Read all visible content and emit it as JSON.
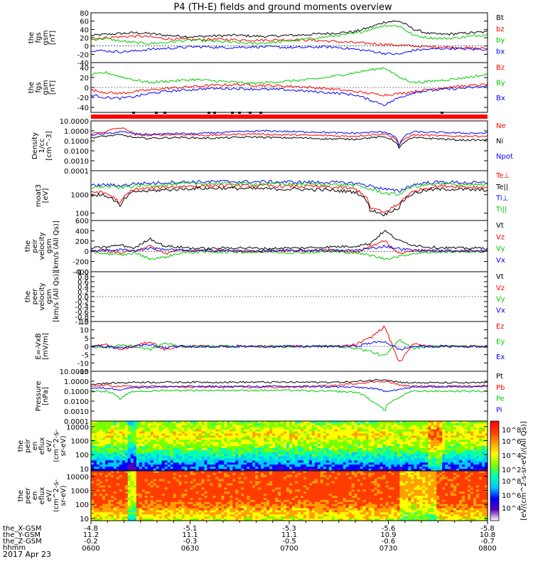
{
  "title": "P4 (TH-E) fields and ground moments overview",
  "date": "2017 Apr 23",
  "chart_data": [
    {
      "type": "line",
      "ylabel_lines": [
        "the",
        "fgs",
        "gsm",
        "[nT]"
      ],
      "yticks": [
        "80",
        "60",
        "40",
        "20",
        "0",
        "-20",
        "-40"
      ],
      "ylim": [
        -40,
        80
      ],
      "series": [
        {
          "name": "Bt",
          "color": "#000000",
          "values": [
            25,
            28,
            30,
            32,
            30,
            26,
            24,
            22,
            24,
            25,
            26,
            24,
            23,
            25,
            26,
            28,
            30,
            32,
            35,
            45,
            58,
            60,
            40,
            30,
            28,
            30,
            32,
            34
          ]
        },
        {
          "name": "bz",
          "color": "#ff0000",
          "values": [
            18,
            20,
            22,
            24,
            22,
            18,
            16,
            15,
            16,
            16,
            15,
            14,
            14,
            15,
            15,
            14,
            12,
            10,
            8,
            6,
            4,
            2,
            0,
            -2,
            -2,
            -4,
            -5,
            -6
          ]
        },
        {
          "name": "by",
          "color": "#00cc00",
          "values": [
            15,
            18,
            12,
            8,
            6,
            8,
            12,
            14,
            12,
            10,
            8,
            6,
            8,
            10,
            14,
            18,
            22,
            26,
            30,
            40,
            50,
            48,
            25,
            20,
            18,
            20,
            24,
            28
          ]
        },
        {
          "name": "bx",
          "color": "#0000ff",
          "values": [
            -10,
            -12,
            -14,
            -12,
            -8,
            -6,
            -4,
            -2,
            -2,
            -4,
            -3,
            -2,
            -2,
            -3,
            -4,
            -3,
            -2,
            -4,
            -8,
            -12,
            -18,
            -20,
            -10,
            -8,
            -6,
            -6,
            -8,
            -8
          ]
        }
      ]
    },
    {
      "type": "line",
      "ylabel_lines": [
        "the",
        "fgs",
        "gsm",
        "[nT]"
      ],
      "yticks": [
        "40",
        "20",
        "0",
        "-20",
        "-40"
      ],
      "ylim": [
        -50,
        50
      ],
      "series": [
        {
          "name": "Bz",
          "color": "#ff0000",
          "values": [
            -5,
            -10,
            -12,
            -8,
            -5,
            -2,
            0,
            2,
            4,
            5,
            6,
            5,
            4,
            3,
            2,
            0,
            -2,
            -5,
            -8,
            -12,
            -15,
            -12,
            -8,
            -4,
            0,
            2,
            4,
            6
          ]
        },
        {
          "name": "By",
          "color": "#00cc00",
          "values": [
            25,
            30,
            22,
            15,
            10,
            12,
            14,
            16,
            14,
            12,
            10,
            8,
            10,
            12,
            14,
            16,
            20,
            25,
            30,
            35,
            40,
            20,
            10,
            12,
            15,
            18,
            22,
            26
          ]
        },
        {
          "name": "Bx",
          "color": "#0000ff",
          "values": [
            -15,
            -20,
            -22,
            -18,
            -12,
            -8,
            -6,
            -4,
            -2,
            -2,
            -2,
            -3,
            -4,
            -4,
            -6,
            -8,
            -10,
            -12,
            -15,
            -25,
            -35,
            -20,
            -10,
            -6,
            -4,
            -2,
            0,
            2
          ]
        }
      ]
    },
    {
      "type": "line",
      "ylabel_lines": [
        "Density",
        "1/cc",
        "[cm^-3]"
      ],
      "yticks": [
        "10.0000",
        "1.0000",
        "0.1000",
        "0.0100",
        "0.0010",
        "0.0001"
      ],
      "ylim": [
        0.0001,
        10
      ],
      "scale": "log",
      "series": [
        {
          "name": "Ne",
          "color": "#ff0000",
          "values": [
            0.5,
            0.8,
            2.0,
            0.4,
            0.35,
            0.4,
            0.45,
            0.4,
            0.35,
            0.4,
            0.45,
            0.5,
            0.45,
            0.4,
            0.4,
            0.35,
            0.35,
            0.3,
            0.3,
            0.4,
            0.5,
            0.02,
            0.4,
            0.35,
            0.3,
            0.3,
            0.3,
            0.3
          ]
        },
        {
          "name": "Ni",
          "color": "#000000",
          "values": [
            0.2,
            0.3,
            0.4,
            0.2,
            0.18,
            0.2,
            0.22,
            0.2,
            0.18,
            0.2,
            0.22,
            0.25,
            0.22,
            0.2,
            0.2,
            0.18,
            0.16,
            0.15,
            0.15,
            0.2,
            0.25,
            0.01,
            0.2,
            0.18,
            0.15,
            0.12,
            0.12,
            0.12
          ]
        },
        {
          "name": "Npot",
          "color": "#0000ff",
          "values": [
            0.4,
            0.5,
            0.8,
            0.5,
            0.45,
            0.5,
            0.55,
            0.5,
            0.6,
            0.7,
            0.8,
            0.9,
            1.0,
            0.9,
            0.8,
            0.8,
            0.7,
            0.6,
            0.6,
            0.7,
            0.8,
            0.005,
            0.8,
            0.7,
            0.7,
            0.6,
            0.6,
            0.6
          ]
        }
      ]
    },
    {
      "type": "line",
      "ylabel_lines": [
        "moat3",
        "[eV]"
      ],
      "yticks": [
        "1000",
        "100"
      ],
      "ylim": [
        40,
        20000
      ],
      "scale": "log",
      "series": [
        {
          "name": "Te⊥",
          "color": "#ff0000",
          "values": [
            1500,
            1200,
            300,
            2000,
            2200,
            2500,
            2800,
            3000,
            3000,
            3200,
            3100,
            3000,
            3000,
            2900,
            2800,
            2800,
            2600,
            2400,
            2000,
            200,
            100,
            300,
            1500,
            2500,
            3000,
            2800,
            2600,
            2500
          ]
        },
        {
          "name": "Te||",
          "color": "#000000",
          "values": [
            1000,
            900,
            200,
            1500,
            1600,
            1800,
            2000,
            2200,
            2200,
            2300,
            2200,
            2100,
            2100,
            2000,
            2000,
            1900,
            1800,
            1600,
            1400,
            150,
            80,
            200,
            1200,
            1800,
            2000,
            2000,
            1800,
            1800
          ]
        },
        {
          "name": "Ti⊥",
          "color": "#0000ff",
          "values": [
            3000,
            3500,
            3000,
            4000,
            4200,
            4500,
            4800,
            5000,
            5000,
            5200,
            5100,
            5000,
            5000,
            4900,
            4800,
            4800,
            4700,
            4500,
            4200,
            3000,
            2000,
            1500,
            3500,
            4500,
            4800,
            4600,
            4400,
            4300
          ]
        },
        {
          "name": "Ti||",
          "color": "#00cc00",
          "values": [
            2500,
            2800,
            2400,
            3000,
            3200,
            3500,
            3800,
            4000,
            4000,
            4100,
            4000,
            3900,
            3900,
            3800,
            3700,
            3700,
            3600,
            3400,
            3200,
            2000,
            1200,
            1000,
            2800,
            3500,
            3800,
            3600,
            3500,
            3400
          ]
        }
      ]
    },
    {
      "type": "line",
      "ylabel_lines": [
        "the",
        "peir",
        "velocity",
        "gsm",
        "[km/s (All Qs)]"
      ],
      "yticks": [
        "600",
        "400",
        "200",
        "0",
        "-200",
        "-400"
      ],
      "ylim": [
        -400,
        600
      ],
      "series": [
        {
          "name": "Vt",
          "color": "#000000",
          "values": [
            60,
            80,
            120,
            60,
            250,
            100,
            80,
            60,
            50,
            60,
            70,
            60,
            50,
            60,
            60,
            70,
            80,
            90,
            100,
            150,
            400,
            200,
            120,
            80,
            70,
            60,
            60,
            60
          ]
        },
        {
          "name": "Vz",
          "color": "#ff0000",
          "values": [
            0,
            20,
            -40,
            20,
            100,
            -50,
            20,
            10,
            0,
            10,
            0,
            -10,
            0,
            10,
            0,
            10,
            20,
            10,
            -20,
            100,
            200,
            -50,
            20,
            10,
            0,
            10,
            0,
            0
          ]
        },
        {
          "name": "Vy",
          "color": "#00cc00",
          "values": [
            -20,
            -40,
            -80,
            -30,
            -150,
            -120,
            -40,
            -20,
            -10,
            -20,
            -10,
            -20,
            -10,
            -20,
            -30,
            -20,
            -10,
            -20,
            -30,
            -80,
            -150,
            -100,
            -40,
            -20,
            -20,
            -10,
            -10,
            -10
          ]
        },
        {
          "name": "Vx",
          "color": "#0000ff",
          "values": [
            10,
            20,
            30,
            10,
            60,
            40,
            20,
            10,
            10,
            20,
            10,
            10,
            10,
            10,
            10,
            20,
            20,
            10,
            20,
            50,
            100,
            50,
            20,
            10,
            10,
            10,
            10,
            10
          ]
        }
      ]
    },
    {
      "type": "line",
      "ylabel_lines": [
        "the",
        "peer",
        "velocity",
        "gsm",
        "[km/s (All Qs)]"
      ],
      "yticks": [
        "1.0",
        "0.8",
        "0.6",
        "0.4",
        "0.2",
        "0.0",
        "-0.2",
        "-0.4",
        "-0.6",
        "-0.8",
        "-1.0"
      ],
      "ylim": [
        -1,
        1
      ],
      "series": [
        {
          "name": "Vt",
          "color": "#000000",
          "values": []
        },
        {
          "name": "Vz",
          "color": "#ff0000",
          "values": []
        },
        {
          "name": "Vy",
          "color": "#00cc00",
          "values": []
        },
        {
          "name": "Vx",
          "color": "#0000ff",
          "values": []
        }
      ]
    },
    {
      "type": "line",
      "ylabel_lines": [
        "E=-VxB",
        "[mV/m]"
      ],
      "yticks": [
        "15",
        "10",
        "5",
        "0",
        "-5",
        "-10",
        "-15"
      ],
      "ylim": [
        -15,
        15
      ],
      "series": [
        {
          "name": "Ez",
          "color": "#ff0000",
          "values": [
            0,
            1,
            -2,
            0,
            3,
            -2,
            0,
            0,
            0,
            0,
            0,
            0,
            0,
            0,
            0,
            0,
            0,
            0,
            1,
            5,
            12,
            -10,
            2,
            0,
            0,
            0,
            0,
            0
          ]
        },
        {
          "name": "Ey",
          "color": "#00cc00",
          "values": [
            0,
            -1,
            1,
            0,
            -2,
            2,
            0,
            0,
            0,
            0,
            0,
            0,
            0,
            0,
            0,
            0,
            0,
            0,
            -1,
            -3,
            -6,
            4,
            -1,
            0,
            0,
            0,
            0,
            0
          ]
        },
        {
          "name": "Ex",
          "color": "#0000ff",
          "values": [
            0,
            0,
            -1,
            0,
            1,
            -1,
            0,
            0,
            0,
            0,
            0,
            0,
            0,
            0,
            0,
            0,
            0,
            0,
            0,
            2,
            3,
            -2,
            0,
            0,
            0,
            0,
            0,
            0
          ]
        }
      ]
    },
    {
      "type": "line",
      "ylabel_lines": [
        "Pressure",
        "[nPa]"
      ],
      "yticks": [
        "10.0000",
        "1.0000",
        "0.1000",
        "0.0100",
        "0.0010",
        "0.0001"
      ],
      "ylim": [
        0.0001,
        10
      ],
      "scale": "log",
      "series": [
        {
          "name": "Pt",
          "color": "#000000",
          "values": [
            0.5,
            0.6,
            0.7,
            0.8,
            0.8,
            0.8,
            0.8,
            0.8,
            0.8,
            0.8,
            0.8,
            0.8,
            0.8,
            0.8,
            0.8,
            0.8,
            0.8,
            0.8,
            0.9,
            1.2,
            1.5,
            0.8,
            0.7,
            0.7,
            0.7,
            0.7,
            0.7,
            0.7
          ]
        },
        {
          "name": "Pb",
          "color": "#ff0000",
          "values": [
            0.3,
            0.4,
            0.3,
            0.3,
            0.3,
            0.3,
            0.25,
            0.25,
            0.25,
            0.25,
            0.25,
            0.25,
            0.25,
            0.25,
            0.25,
            0.3,
            0.35,
            0.4,
            0.6,
            0.8,
            1.0,
            0.4,
            0.3,
            0.3,
            0.3,
            0.3,
            0.35,
            0.35
          ]
        },
        {
          "name": "Pe",
          "color": "#00cc00",
          "values": [
            0.1,
            0.1,
            0.01,
            0.1,
            0.1,
            0.12,
            0.12,
            0.12,
            0.12,
            0.12,
            0.12,
            0.12,
            0.12,
            0.12,
            0.12,
            0.1,
            0.1,
            0.09,
            0.08,
            0.01,
            0.0005,
            0.02,
            0.1,
            0.1,
            0.1,
            0.1,
            0.1,
            0.1
          ]
        },
        {
          "name": "Pi",
          "color": "#0000ff",
          "values": [
            0.2,
            0.2,
            0.15,
            0.25,
            0.25,
            0.28,
            0.3,
            0.3,
            0.3,
            0.3,
            0.3,
            0.3,
            0.3,
            0.3,
            0.3,
            0.3,
            0.28,
            0.26,
            0.25,
            0.2,
            0.1,
            0.15,
            0.25,
            0.28,
            0.3,
            0.3,
            0.3,
            0.3
          ]
        }
      ]
    },
    {
      "type": "heatmap",
      "ylabel_lines": [
        "the",
        "peir",
        "en",
        "eflux",
        "eV/",
        "(cm^2-s-",
        "sr-eV)"
      ],
      "yticks": [
        "10000",
        "1000",
        "100",
        "10"
      ],
      "ylim": [
        7,
        25000
      ],
      "scale": "log"
    },
    {
      "type": "heatmap",
      "ylabel_lines": [
        "the",
        "peer",
        "en",
        "eflux",
        "eV/",
        "(cm^2-s-",
        "sr-eV)"
      ],
      "yticks": [
        "10000",
        "1000",
        "100",
        "10"
      ],
      "ylim": [
        7,
        25000
      ],
      "scale": "log"
    }
  ],
  "colorbar": {
    "tick_labels": [
      "10^8",
      "10^6",
      "10^4",
      "10^2"
    ],
    "label": "[eV/(cm^2-s-sr-eV)/(All Qs)]",
    "colors": [
      "#ffffff",
      "#5a00b4",
      "#0000ff",
      "#00c8ff",
      "#00ffb4",
      "#78ff00",
      "#ffff00",
      "#ffa000",
      "#ff3c00",
      "#ff0000"
    ]
  },
  "x_axis": {
    "tick_labels": [
      "0600",
      "0630",
      "0700",
      "0730",
      "0800"
    ],
    "row_labels": [
      "the_X-GSM",
      "the_Y-GSM",
      "the_Z-GSM",
      "hhmm"
    ],
    "rows": [
      [
        "-4.8",
        "-5.1",
        "-5.3",
        "-5.6",
        "-5.8"
      ],
      [
        "11.2",
        "11.1",
        "11.1",
        "10.9",
        "10.8"
      ],
      [
        "-0.2",
        "-0.3",
        "-0.5",
        "-0.6",
        "-0.7"
      ]
    ]
  }
}
